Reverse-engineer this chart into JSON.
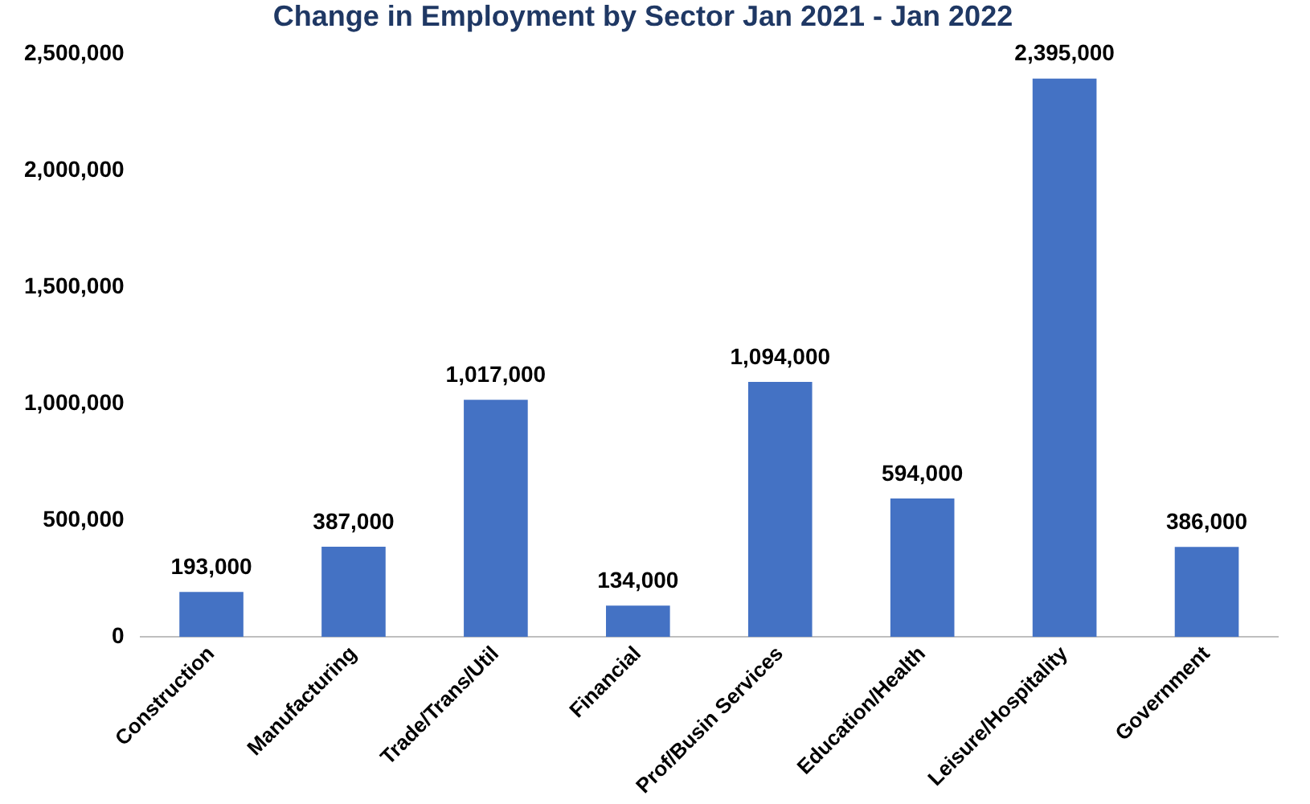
{
  "chart_data": {
    "type": "bar",
    "title": "Change in Employment by Sector Jan 2021 - Jan 2022",
    "categories": [
      "Construction",
      "Manufacturing",
      "Trade/Trans/Util",
      "Financial",
      "Prof/Busin Services",
      "Education/Health",
      "Leisure/Hospitality",
      "Government"
    ],
    "values": [
      193000,
      387000,
      1017000,
      134000,
      1094000,
      594000,
      2395000,
      386000
    ],
    "value_labels": [
      "193,000",
      "387,000",
      "1,017,000",
      "134,000",
      "1,094,000",
      "594,000",
      "2,395,000",
      "386,000"
    ],
    "color": "#4472c4",
    "ylim": [
      0,
      2500000
    ],
    "yticks": [
      0,
      {
        "value": 500000,
        "label": "500,000"
      },
      {
        "value": 1000000,
        "label": "1,000,000"
      },
      {
        "value": 1500000,
        "label": "1,500,000"
      },
      {
        "value": 2000000,
        "label": "2,000,000"
      },
      {
        "value": 2500000,
        "label": "2,500,000"
      }
    ],
    "grid": false,
    "legend": false
  }
}
